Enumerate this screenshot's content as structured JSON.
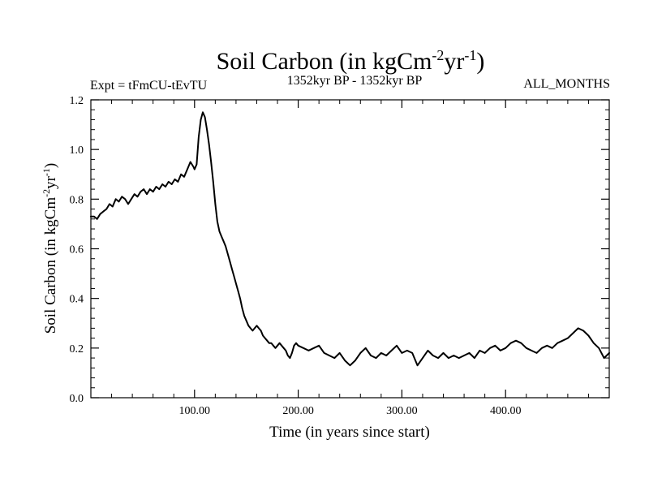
{
  "chart_data": {
    "type": "line",
    "title": "Soil Carbon (in kgCm",
    "title_sup1": "-2",
    "title_mid": "yr",
    "title_sup2": "-1",
    "title_end": ")",
    "subtitle_left": "Expt = tFmCU-tEvTU",
    "subtitle_center": "1352kyr BP - 1352kyr BP",
    "subtitle_right": "ALL_MONTHS",
    "xlabel": "Time (in years since start)",
    "ylabel_pre": "Soil Carbon (in kgCm",
    "ylabel_sup1": "-2",
    "ylabel_mid": "yr",
    "ylabel_sup2": "-1",
    "ylabel_end": ")",
    "xlim": [
      0,
      500
    ],
    "ylim": [
      0.0,
      1.2
    ],
    "x_ticks": [
      {
        "value": 100,
        "label": "100.00"
      },
      {
        "value": 200,
        "label": "200.00"
      },
      {
        "value": 300,
        "label": "300.00"
      },
      {
        "value": 400,
        "label": "400.00"
      }
    ],
    "y_ticks": [
      {
        "value": 0.0,
        "label": "0.0"
      },
      {
        "value": 0.2,
        "label": "0.2"
      },
      {
        "value": 0.4,
        "label": "0.4"
      },
      {
        "value": 0.6,
        "label": "0.6"
      },
      {
        "value": 0.8,
        "label": "0.8"
      },
      {
        "value": 1.0,
        "label": "1.0"
      },
      {
        "value": 1.2,
        "label": "1.2"
      }
    ],
    "series": [
      {
        "name": "Soil Carbon",
        "color": "#000000",
        "x": [
          0,
          3,
          6,
          9,
          12,
          15,
          18,
          21,
          24,
          27,
          30,
          33,
          36,
          39,
          42,
          45,
          48,
          51,
          54,
          57,
          60,
          63,
          66,
          69,
          72,
          75,
          78,
          81,
          84,
          87,
          90,
          93,
          96,
          99,
          100,
          102,
          104,
          106,
          108,
          110,
          112,
          114,
          116,
          118,
          120,
          122,
          124,
          126,
          128,
          130,
          132,
          134,
          136,
          138,
          140,
          142,
          144,
          146,
          148,
          150,
          152,
          154,
          156,
          158,
          160,
          162,
          164,
          166,
          168,
          170,
          172,
          174,
          176,
          178,
          180,
          182,
          184,
          186,
          188,
          190,
          192,
          194,
          196,
          198,
          200,
          205,
          210,
          215,
          220,
          225,
          230,
          235,
          240,
          245,
          250,
          255,
          260,
          265,
          270,
          275,
          280,
          285,
          290,
          295,
          300,
          305,
          310,
          315,
          320,
          325,
          330,
          335,
          340,
          345,
          350,
          355,
          360,
          365,
          370,
          375,
          380,
          385,
          390,
          395,
          400,
          405,
          410,
          415,
          420,
          425,
          430,
          435,
          440,
          445,
          450,
          455,
          460,
          465,
          470,
          475,
          480,
          485,
          490,
          495,
          500
        ],
        "values": [
          0.73,
          0.73,
          0.72,
          0.74,
          0.75,
          0.76,
          0.78,
          0.77,
          0.8,
          0.79,
          0.81,
          0.8,
          0.78,
          0.8,
          0.82,
          0.81,
          0.83,
          0.84,
          0.82,
          0.84,
          0.83,
          0.85,
          0.84,
          0.86,
          0.85,
          0.87,
          0.86,
          0.88,
          0.87,
          0.9,
          0.89,
          0.92,
          0.95,
          0.93,
          0.92,
          0.94,
          1.05,
          1.12,
          1.15,
          1.13,
          1.08,
          1.02,
          0.95,
          0.87,
          0.78,
          0.71,
          0.67,
          0.65,
          0.63,
          0.61,
          0.58,
          0.55,
          0.52,
          0.49,
          0.46,
          0.43,
          0.4,
          0.36,
          0.33,
          0.31,
          0.29,
          0.28,
          0.27,
          0.28,
          0.29,
          0.28,
          0.27,
          0.25,
          0.24,
          0.23,
          0.22,
          0.22,
          0.21,
          0.2,
          0.21,
          0.22,
          0.21,
          0.2,
          0.19,
          0.17,
          0.16,
          0.18,
          0.21,
          0.22,
          0.21,
          0.2,
          0.19,
          0.2,
          0.21,
          0.18,
          0.17,
          0.16,
          0.18,
          0.15,
          0.13,
          0.15,
          0.18,
          0.2,
          0.17,
          0.16,
          0.18,
          0.17,
          0.19,
          0.21,
          0.18,
          0.19,
          0.18,
          0.13,
          0.16,
          0.19,
          0.17,
          0.16,
          0.18,
          0.16,
          0.17,
          0.16,
          0.17,
          0.18,
          0.16,
          0.19,
          0.18,
          0.2,
          0.21,
          0.19,
          0.2,
          0.22,
          0.23,
          0.22,
          0.2,
          0.19,
          0.18,
          0.2,
          0.21,
          0.2,
          0.22,
          0.23,
          0.24,
          0.26,
          0.28,
          0.27,
          0.25,
          0.22,
          0.2,
          0.16,
          0.18
        ]
      }
    ]
  }
}
